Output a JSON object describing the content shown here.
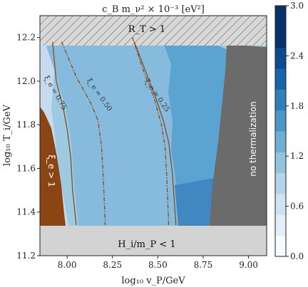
{
  "chart_data": {
    "type": "heatmap",
    "title": "c_B m_ν² × 10⁻³ [eV²]",
    "xlabel": "log₁₀ v_P/GeV",
    "ylabel": "log₁₀ T_i/GeV",
    "xlim": [
      7.85,
      9.1
    ],
    "ylim": [
      11.2,
      12.3
    ],
    "x_ticks": [
      "8.00",
      "8.25",
      "8.50",
      "8.75",
      "9.00"
    ],
    "x_tick_values": [
      8.0,
      8.25,
      8.5,
      8.75,
      9.0
    ],
    "y_ticks": [
      "11.2",
      "11.4",
      "11.6",
      "11.8",
      "12.0",
      "12.2"
    ],
    "y_tick_values": [
      11.2,
      11.4,
      11.6,
      11.8,
      12.0,
      12.2
    ],
    "colorbar": {
      "ticks": [
        "0.0",
        "0.6",
        "1.2",
        "1.8",
        "2.4",
        "3.0"
      ],
      "tick_values": [
        0.0,
        0.6,
        1.2,
        1.8,
        2.4,
        3.0
      ],
      "range": [
        0.0,
        3.0
      ],
      "levels": 12,
      "colormap": "Blues"
    },
    "regions": [
      {
        "label": "R_T > 1",
        "style": "hatched",
        "y_range": [
          12.21,
          12.3
        ]
      },
      {
        "label": "H_i/m_P < 1",
        "style": "light-gray",
        "y_range": [
          11.2,
          11.34
        ]
      },
      {
        "label": "no thermalization",
        "style": "dark-gray",
        "x_from": 8.78
      },
      {
        "label": "ξ_e > 1",
        "style": "brown",
        "x_to": 7.97
      }
    ],
    "contours": [
      {
        "label": "ξ_e = 0.75",
        "style": "solid",
        "color": "#8b4a1c",
        "points": [
          [
            7.92,
            12.18
          ],
          [
            7.94,
            12.0
          ],
          [
            7.98,
            11.87
          ],
          [
            8.0,
            11.78
          ],
          [
            8.02,
            11.65
          ],
          [
            8.03,
            11.5
          ],
          [
            8.05,
            11.34
          ]
        ]
      },
      {
        "label": "ξ_e = 0.50",
        "style": "dash-dot",
        "color": "#8b4a1c",
        "points": [
          [
            7.97,
            12.18
          ],
          [
            8.05,
            12.02
          ],
          [
            8.13,
            11.9
          ],
          [
            8.17,
            11.82
          ],
          [
            8.19,
            11.7
          ],
          [
            8.2,
            11.55
          ],
          [
            8.21,
            11.34
          ]
        ]
      },
      {
        "label": "ξ_e = 0.25",
        "style": "dash-dot",
        "color": "#8b4a1c",
        "points": [
          [
            8.36,
            12.2
          ],
          [
            8.42,
            12.05
          ],
          [
            8.48,
            11.92
          ],
          [
            8.52,
            11.8
          ],
          [
            8.54,
            11.7
          ],
          [
            8.55,
            11.55
          ],
          [
            8.56,
            11.34
          ]
        ]
      },
      {
        "label": "ξ_e = 0.75",
        "style": "solid",
        "color": "#8b4a1c",
        "points": [
          [
            8.37,
            12.18
          ],
          [
            8.43,
            12.05
          ],
          [
            8.49,
            11.92
          ],
          [
            8.53,
            11.82
          ],
          [
            8.56,
            11.72
          ],
          [
            8.58,
            11.58
          ],
          [
            8.6,
            11.34
          ]
        ]
      }
    ],
    "bands": [
      {
        "level": 1.35,
        "color": "#6aaed6",
        "x_to_left": 8.35
      },
      {
        "level": 1.2,
        "color": "#87bbdd",
        "x_to_left": 7.97
      },
      {
        "level": 1.5,
        "color": "#5197cc",
        "x_from": 8.55
      },
      {
        "level": 1.95,
        "color": "#4187c2",
        "x_from": 8.6
      }
    ],
    "grid": false,
    "legend": "none"
  },
  "texts": {
    "title": "c_B m_ν² × 10⁻³ [eV²]",
    "xlabel": "log₁₀ v_P/GeV",
    "ylabel": "log₁₀ T_i/GeV",
    "region_rt": "R_T > 1",
    "region_hi": "H_i/m_P < 1",
    "region_notherm": "no thermalization",
    "region_xi": "ξ_e > 1",
    "contour_075": "ξ_e = 0.75",
    "contour_050": "ξ_e = 0.50",
    "contour_025": "ξ_e = 0.25"
  }
}
